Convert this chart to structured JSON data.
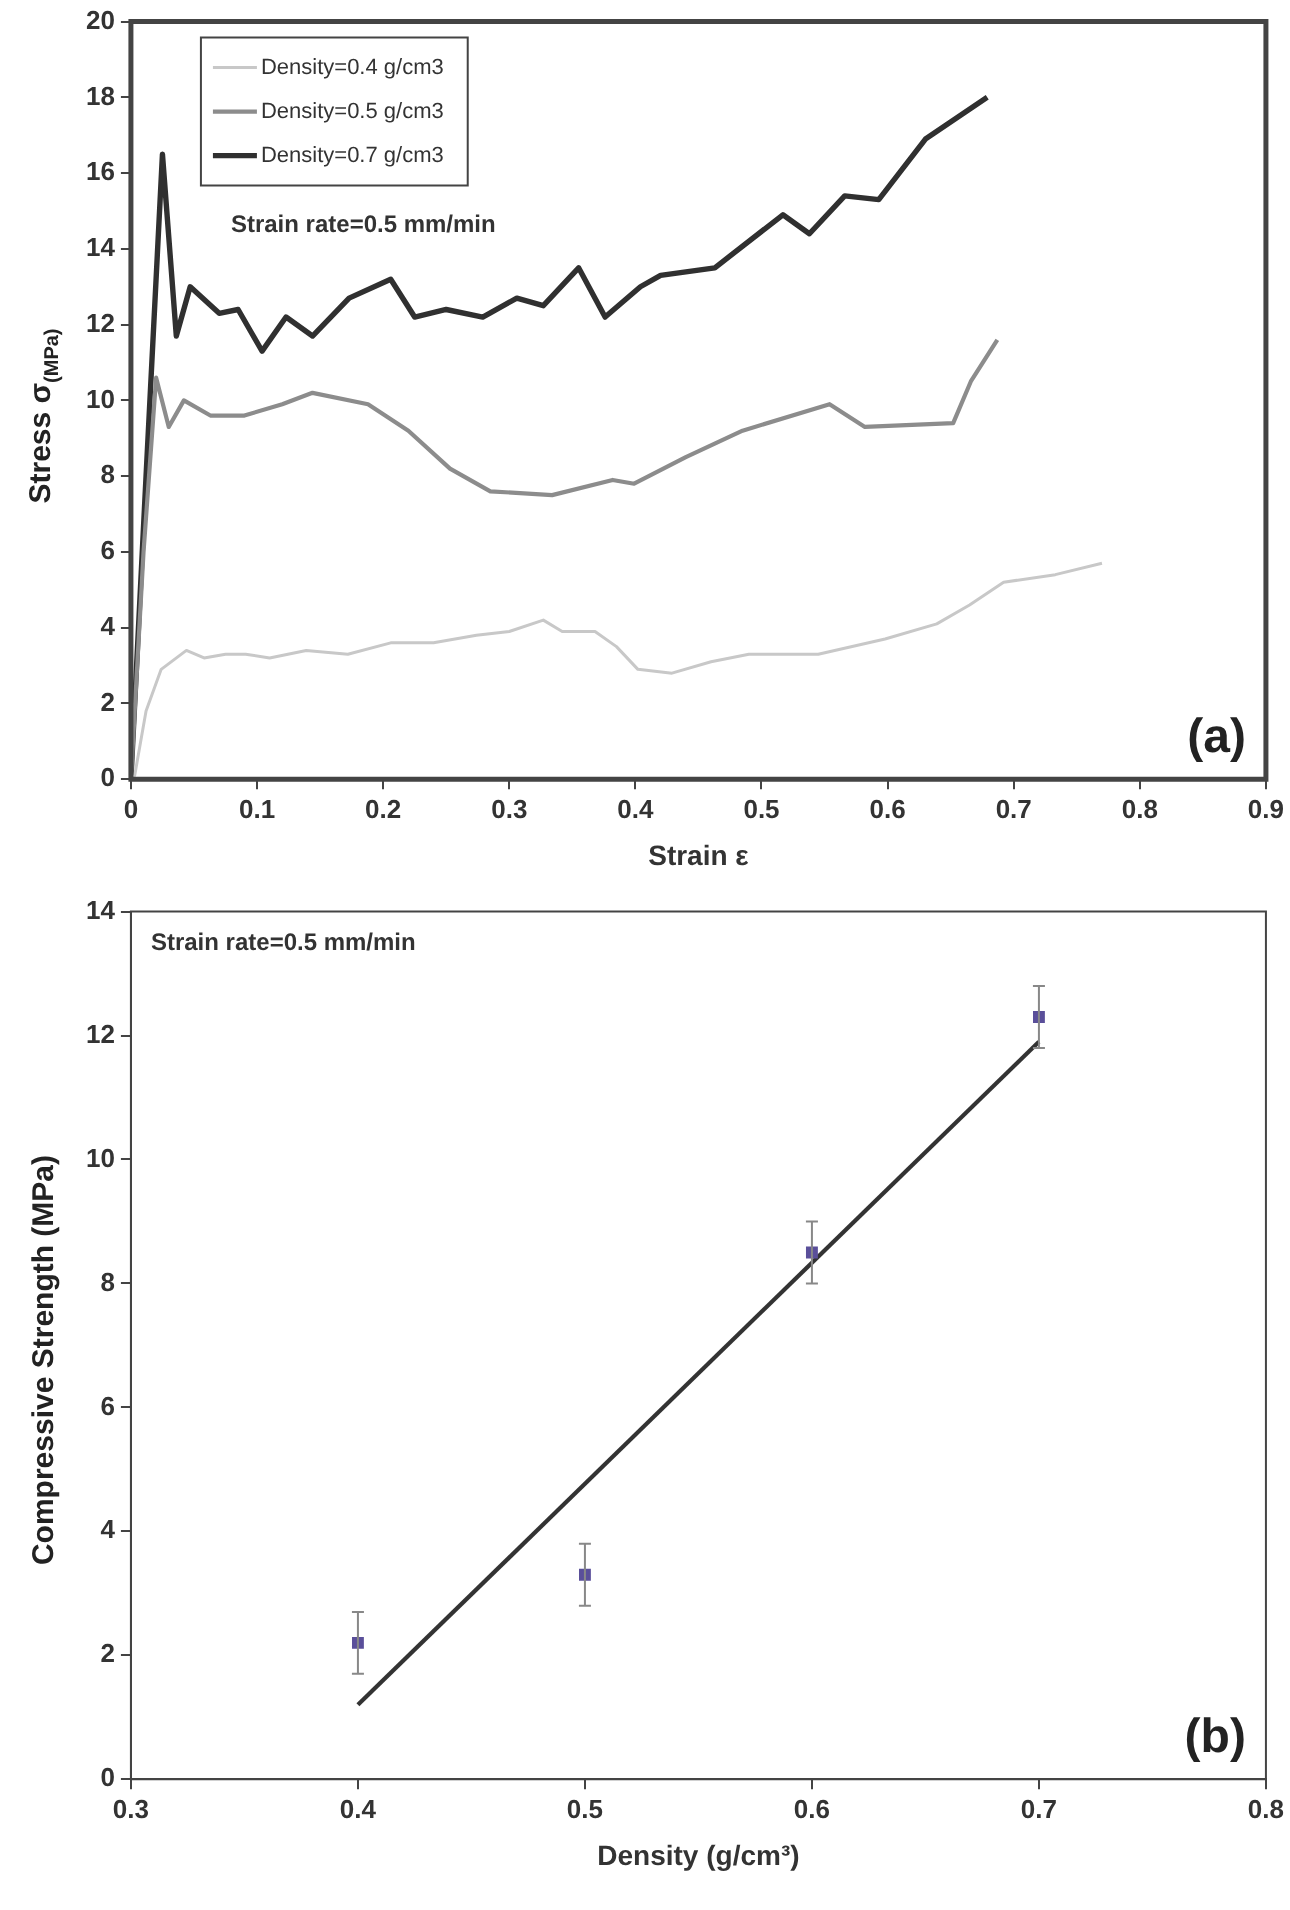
{
  "chart_data": [
    {
      "type": "line",
      "xlabel": "Strain ε",
      "ylabel": "Stress σ$_{(MPa)}$",
      "xlim": [
        0,
        0.9
      ],
      "xticks": [
        0,
        0.1,
        0.2,
        0.3,
        0.4,
        0.5,
        0.6,
        0.7,
        0.8,
        0.9
      ],
      "ylim": [
        0,
        20
      ],
      "yticks": [
        0,
        2,
        4,
        6,
        8,
        10,
        12,
        14,
        16,
        18,
        20
      ],
      "grid": false,
      "legend": "top left",
      "marker": "none",
      "line_style": "solid",
      "annotations": [
        "Strain rate=0.5 mm/min",
        "(a)"
      ],
      "series": [
        {
          "name": "Density=0.4 g/cm3",
          "color": "#c8c8c8",
          "x": [
            0,
            0.003,
            0.012,
            0.024,
            0.044,
            0.058,
            0.075,
            0.091,
            0.11,
            0.139,
            0.172,
            0.206,
            0.24,
            0.274,
            0.3,
            0.327,
            0.342,
            0.368,
            0.385,
            0.402,
            0.429,
            0.46,
            0.49,
            0.545,
            0.598,
            0.639,
            0.665,
            0.692,
            0.733,
            0.77
          ],
          "values": [
            0,
            0.1,
            1.8,
            2.9,
            3.4,
            3.2,
            3.3,
            3.3,
            3.2,
            3.4,
            3.3,
            3.6,
            3.6,
            3.8,
            3.9,
            4.2,
            3.9,
            3.9,
            3.5,
            2.9,
            2.8,
            3.1,
            3.3,
            3.3,
            3.7,
            4.1,
            4.6,
            5.2,
            5.4,
            5.7
          ]
        },
        {
          "name": "Density=0.5 g/cm3",
          "color": "#8c8c8c",
          "x": [
            0,
            0.01,
            0.02,
            0.03,
            0.042,
            0.063,
            0.09,
            0.12,
            0.144,
            0.188,
            0.22,
            0.253,
            0.285,
            0.334,
            0.382,
            0.399,
            0.44,
            0.485,
            0.554,
            0.582,
            0.652,
            0.666,
            0.687
          ],
          "values": [
            0,
            6,
            10.6,
            9.3,
            10.0,
            9.6,
            9.6,
            9.9,
            10.2,
            9.9,
            9.2,
            8.2,
            7.6,
            7.5,
            7.9,
            7.8,
            8.5,
            9.2,
            9.9,
            9.3,
            9.4,
            10.5,
            11.6
          ]
        },
        {
          "name": "Density=0.7 g/cm3",
          "color": "#303030",
          "x": [
            0,
            0.012,
            0.025,
            0.036,
            0.047,
            0.07,
            0.085,
            0.104,
            0.123,
            0.144,
            0.173,
            0.206,
            0.225,
            0.25,
            0.279,
            0.306,
            0.327,
            0.355,
            0.376,
            0.404,
            0.42,
            0.463,
            0.517,
            0.538,
            0.566,
            0.593,
            0.63,
            0.679
          ],
          "values": [
            0,
            8,
            16.5,
            11.7,
            13.0,
            12.3,
            12.4,
            11.3,
            12.2,
            11.7,
            12.7,
            13.2,
            12.2,
            12.4,
            12.2,
            12.7,
            12.5,
            13.5,
            12.2,
            13.0,
            13.3,
            13.5,
            14.9,
            14.4,
            15.4,
            15.3,
            16.9,
            18.0
          ]
        }
      ]
    },
    {
      "type": "scatter",
      "xlabel": "Density (g/cm³)",
      "ylabel": "Compressive Strength (MPa)",
      "xlim": [
        0.3,
        0.8
      ],
      "xticks": [
        0.3,
        0.4,
        0.5,
        0.6,
        0.7,
        0.8
      ],
      "ylim": [
        0,
        14
      ],
      "yticks": [
        0,
        2,
        4,
        6,
        8,
        10,
        12,
        14
      ],
      "grid": false,
      "legend": false,
      "marker": "square",
      "annotations": [
        "Strain rate=0.5 mm/min",
        "(b)"
      ],
      "series": [
        {
          "color": "#5a4f9a",
          "x": [
            0.4,
            0.5,
            0.6,
            0.7
          ],
          "values": [
            2.2,
            3.3,
            8.5,
            12.3
          ],
          "errors": [
            0.5,
            0.5,
            0.5,
            0.5
          ]
        },
        {
          "type": "line",
          "marker": "none",
          "color": "#333333",
          "x": [
            0.4,
            0.7
          ],
          "values": [
            1.2,
            11.9
          ]
        }
      ]
    }
  ]
}
